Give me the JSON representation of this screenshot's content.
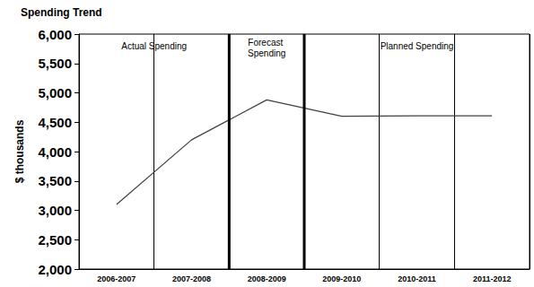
{
  "chart_data": {
    "type": "line",
    "title": "Spending Trend",
    "y_label": "$ thousands",
    "categories": [
      "2006-2007",
      "2007-2008",
      "2008-2009",
      "2009-2010",
      "2010-2011",
      "2011-2012"
    ],
    "values": [
      3100,
      4200,
      4880,
      4600,
      4610,
      4610
    ],
    "color": "#404040",
    "ylim": [
      2000,
      6000
    ],
    "yticks": [
      2000,
      2500,
      3000,
      3500,
      4000,
      4500,
      5000,
      5500,
      6000
    ],
    "grid": "x",
    "annotations": [
      "Actual Spending",
      "Forecast Spending",
      "Planned Spending"
    ]
  }
}
